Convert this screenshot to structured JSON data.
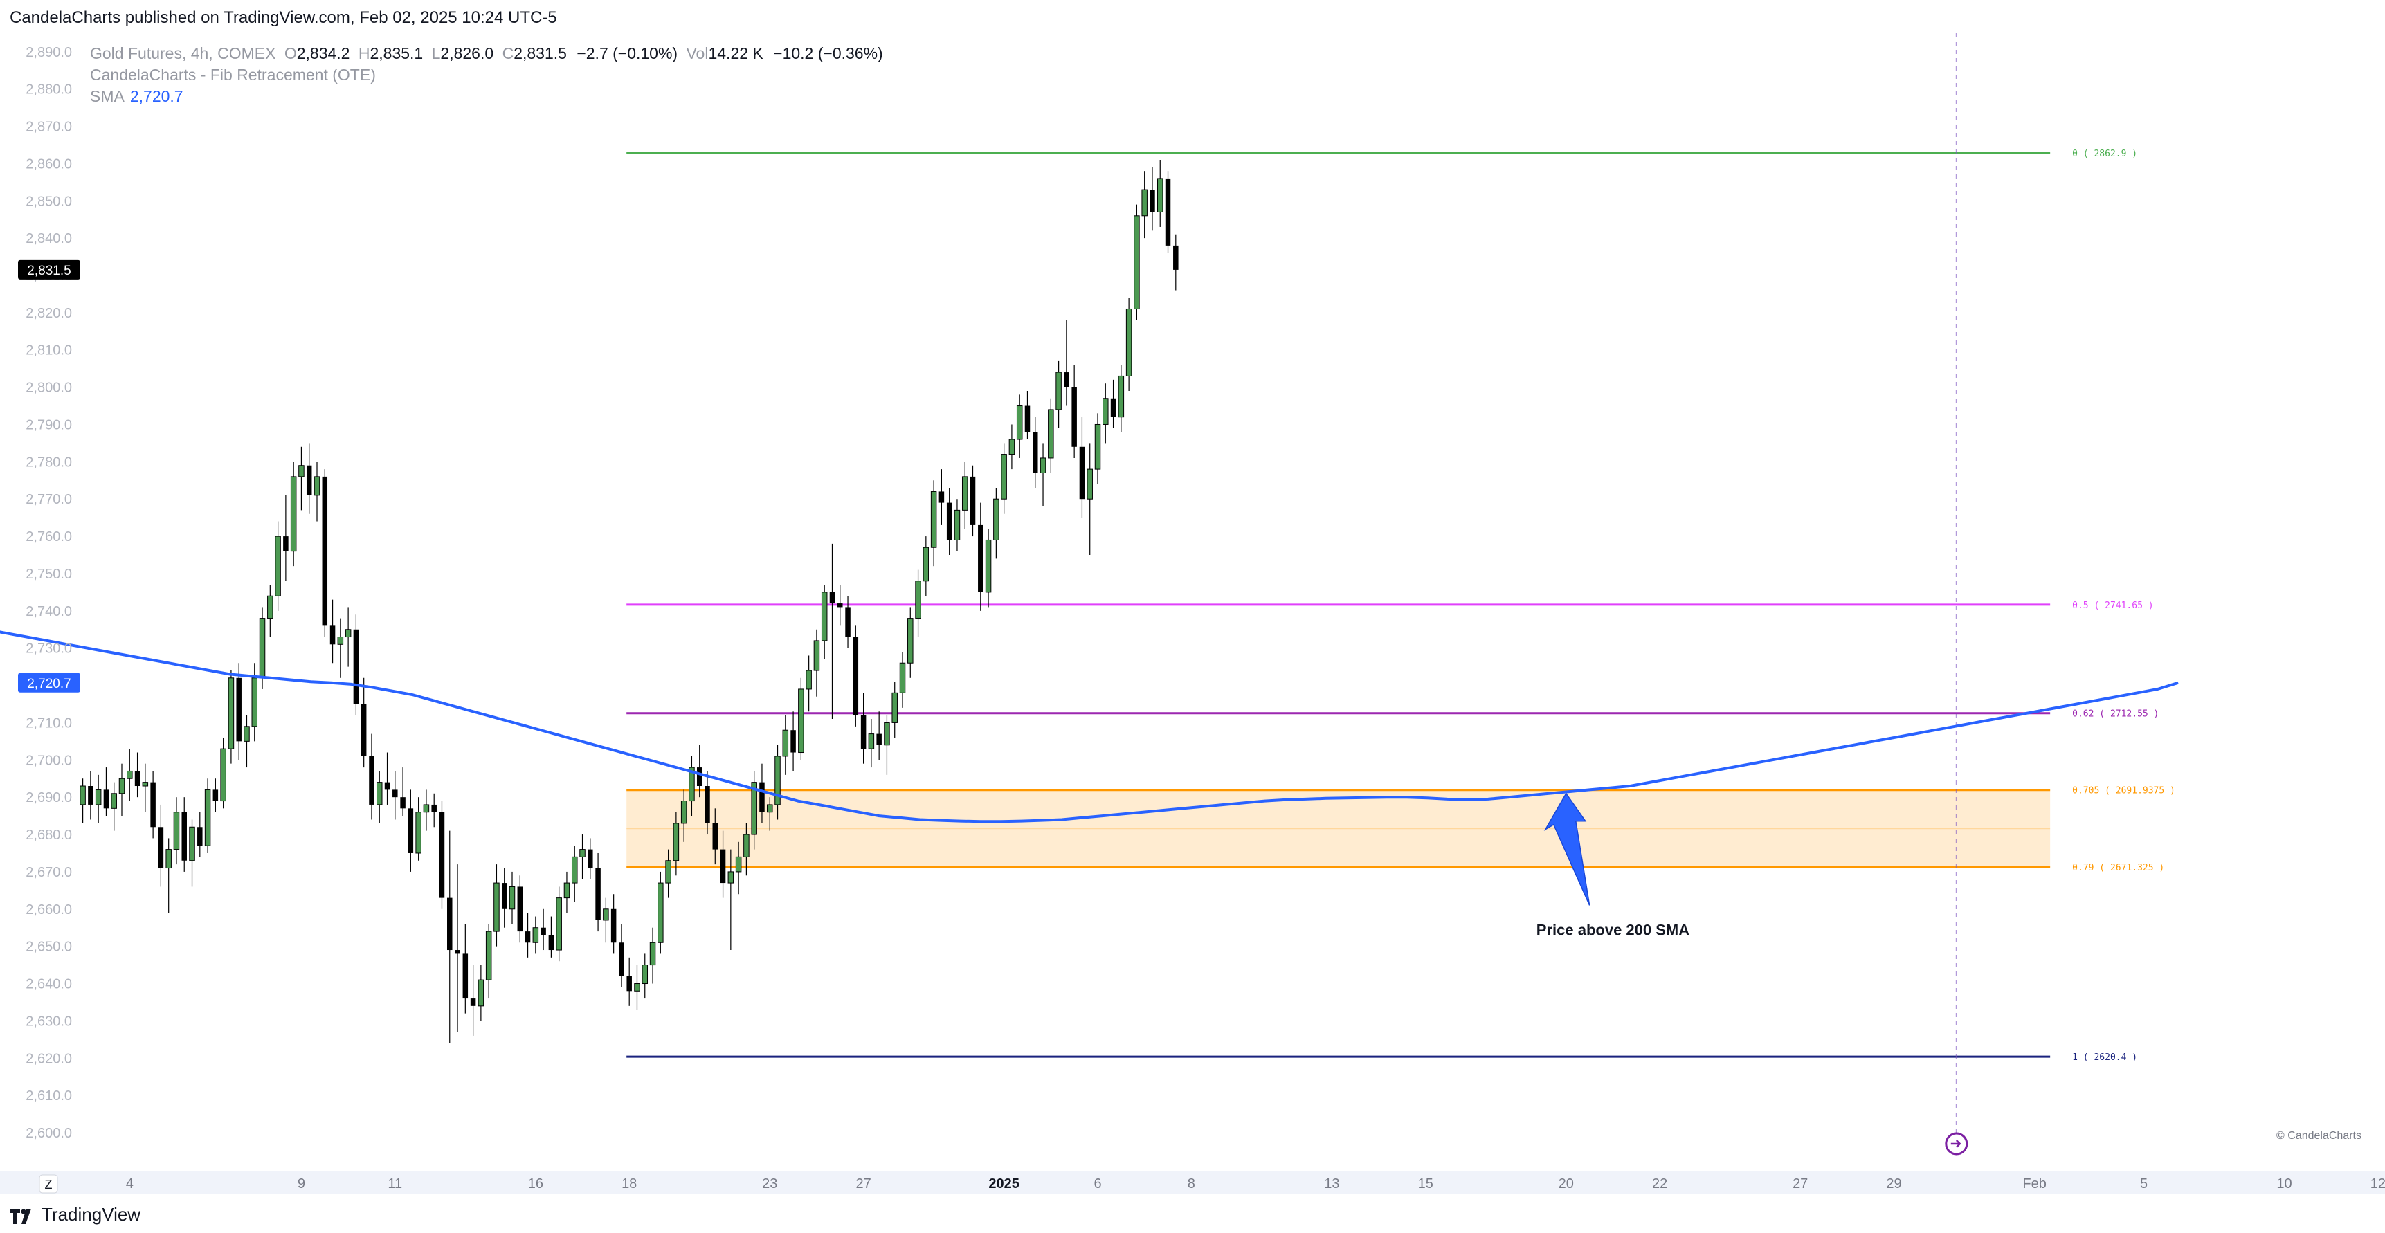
{
  "header": {
    "published": "CandelaCharts published on TradingView.com, Feb 02, 2025 10:24 UTC-5"
  },
  "legend": {
    "symbol": "Gold Futures, 4h, COMEX",
    "ohlc": [
      {
        "k": "O",
        "v": "2,834.2"
      },
      {
        "k": "H",
        "v": "2,835.1"
      },
      {
        "k": "L",
        "v": "2,826.0"
      },
      {
        "k": "C",
        "v": "2,831.5"
      }
    ],
    "change": "−2.7 (−0.10%)",
    "vol_label": "Vol",
    "vol_value": "14.22 K",
    "vol_change": "−10.2 (−0.36%)",
    "indicator_fib": "CandelaCharts - Fib Retracement (OTE)",
    "indicator_sma": "SMA",
    "sma_value": "2,720.7"
  },
  "footer": {
    "logo_text": "TradingView",
    "copyright": "© CandelaCharts",
    "axis_mode": "Z"
  },
  "colors": {
    "up": "#4c9a52",
    "down": "#000000",
    "sma": "#2962ff",
    "fib_0": "#4caf50",
    "fib_05": "#e040fb",
    "fib_062": "#9c27b0",
    "fib_ote": "#ff9800",
    "fib_1": "#1a237e",
    "annotation_arrow": "#2962ff"
  },
  "chart_data": {
    "type": "candlestick",
    "title": "Gold Futures, 4h, COMEX",
    "ylim": [
      2596,
      2894
    ],
    "y_ticks": [
      "2,600.0",
      "2,610.0",
      "2,620.0",
      "2,630.0",
      "2,640.0",
      "2,650.0",
      "2,660.0",
      "2,670.0",
      "2,680.0",
      "2,690.0",
      "2,700.0",
      "2,710.0",
      "2,720.0",
      "2,730.0",
      "2,740.0",
      "2,750.0",
      "2,760.0",
      "2,770.0",
      "2,780.0",
      "2,790.0",
      "2,800.0",
      "2,810.0",
      "2,820.0",
      "2,830.0",
      "2,840.0",
      "2,850.0",
      "2,860.0",
      "2,870.0",
      "2,880.0",
      "2,890.0"
    ],
    "x_ticks": [
      {
        "label": "4",
        "bar": 6
      },
      {
        "label": "9",
        "bar": 28
      },
      {
        "label": "11",
        "bar": 40
      },
      {
        "label": "16",
        "bar": 58
      },
      {
        "label": "18",
        "bar": 70
      },
      {
        "label": "23",
        "bar": 88
      },
      {
        "label": "27",
        "bar": 100
      },
      {
        "label": "2025",
        "bar": 118
      },
      {
        "label": "6",
        "bar": 130
      },
      {
        "label": "8",
        "bar": 142
      },
      {
        "label": "13",
        "bar": 160
      },
      {
        "label": "15",
        "bar": 172
      },
      {
        "label": "20",
        "bar": 190
      },
      {
        "label": "22",
        "bar": 202
      },
      {
        "label": "27",
        "bar": 220
      },
      {
        "label": "29",
        "bar": 232
      },
      {
        "label": "Feb",
        "bar": 250
      },
      {
        "label": "5",
        "bar": 264
      },
      {
        "label": "10",
        "bar": 282
      },
      {
        "label": "12",
        "bar": 294
      }
    ],
    "price_labels": [
      {
        "name": "last-price",
        "value": 2831.5,
        "text": "2,831.5"
      },
      {
        "name": "sma-price",
        "value": 2720.7,
        "text": "2,720.7"
      }
    ],
    "candles_bar_offset": 0,
    "candles": [
      [
        2688,
        2695,
        2683,
        2693
      ],
      [
        2693,
        2697,
        2684,
        2688
      ],
      [
        2688,
        2696,
        2683,
        2692
      ],
      [
        2692,
        2698,
        2685,
        2687
      ],
      [
        2687,
        2694,
        2681,
        2691
      ],
      [
        2691,
        2699,
        2685,
        2695
      ],
      [
        2695,
        2703,
        2689,
        2697
      ],
      [
        2697,
        2702,
        2690,
        2693
      ],
      [
        2693,
        2699,
        2686,
        2694
      ],
      [
        2694,
        2697,
        2679,
        2682
      ],
      [
        2682,
        2688,
        2666,
        2671
      ],
      [
        2671,
        2679,
        2659,
        2676
      ],
      [
        2676,
        2690,
        2672,
        2686
      ],
      [
        2686,
        2690,
        2670,
        2673
      ],
      [
        2673,
        2684,
        2666,
        2682
      ],
      [
        2682,
        2686,
        2674,
        2677
      ],
      [
        2677,
        2695,
        2675,
        2692
      ],
      [
        2692,
        2695,
        2686,
        2689
      ],
      [
        2689,
        2706,
        2687,
        2703
      ],
      [
        2703,
        2724,
        2699,
        2722
      ],
      [
        2722,
        2726,
        2700,
        2705
      ],
      [
        2705,
        2712,
        2698,
        2709
      ],
      [
        2709,
        2726,
        2705,
        2722
      ],
      [
        2722,
        2741,
        2719,
        2738
      ],
      [
        2738,
        2747,
        2733,
        2744
      ],
      [
        2744,
        2764,
        2740,
        2760
      ],
      [
        2760,
        2771,
        2748,
        2756
      ],
      [
        2756,
        2780,
        2752,
        2776
      ],
      [
        2776,
        2784,
        2767,
        2779
      ],
      [
        2779,
        2785,
        2766,
        2771
      ],
      [
        2771,
        2780,
        2764,
        2776
      ],
      [
        2776,
        2778,
        2733,
        2736
      ],
      [
        2736,
        2743,
        2726,
        2731
      ],
      [
        2731,
        2738,
        2722,
        2733
      ],
      [
        2733,
        2741,
        2725,
        2735
      ],
      [
        2735,
        2739,
        2712,
        2715
      ],
      [
        2715,
        2722,
        2698,
        2701
      ],
      [
        2701,
        2707,
        2684,
        2688
      ],
      [
        2688,
        2697,
        2683,
        2694
      ],
      [
        2694,
        2702,
        2688,
        2692
      ],
      [
        2692,
        2697,
        2684,
        2690
      ],
      [
        2690,
        2698,
        2685,
        2687
      ],
      [
        2687,
        2692,
        2670,
        2675
      ],
      [
        2675,
        2690,
        2673,
        2686
      ],
      [
        2686,
        2692,
        2681,
        2688
      ],
      [
        2688,
        2691,
        2682,
        2686
      ],
      [
        2686,
        2689,
        2660,
        2663
      ],
      [
        2663,
        2681,
        2624,
        2649
      ],
      [
        2649,
        2672,
        2627,
        2648
      ],
      [
        2648,
        2656,
        2632,
        2636
      ],
      [
        2636,
        2645,
        2626,
        2634
      ],
      [
        2634,
        2645,
        2630,
        2641
      ],
      [
        2641,
        2656,
        2636,
        2654
      ],
      [
        2654,
        2672,
        2650,
        2667
      ],
      [
        2667,
        2671,
        2655,
        2660
      ],
      [
        2660,
        2670,
        2656,
        2666
      ],
      [
        2666,
        2669,
        2651,
        2654
      ],
      [
        2654,
        2659,
        2647,
        2651
      ],
      [
        2651,
        2658,
        2648,
        2655
      ],
      [
        2655,
        2660,
        2649,
        2653
      ],
      [
        2653,
        2658,
        2647,
        2649
      ],
      [
        2649,
        2666,
        2646,
        2663
      ],
      [
        2663,
        2670,
        2659,
        2667
      ],
      [
        2667,
        2677,
        2662,
        2674
      ],
      [
        2674,
        2680,
        2668,
        2676
      ],
      [
        2676,
        2679,
        2668,
        2671
      ],
      [
        2671,
        2675,
        2654,
        2657
      ],
      [
        2657,
        2663,
        2651,
        2660
      ],
      [
        2660,
        2664,
        2648,
        2651
      ],
      [
        2651,
        2656,
        2639,
        2642
      ],
      [
        2642,
        2647,
        2634,
        2638
      ],
      [
        2638,
        2645,
        2633,
        2640
      ],
      [
        2640,
        2648,
        2636,
        2645
      ],
      [
        2645,
        2655,
        2640,
        2651
      ],
      [
        2651,
        2670,
        2648,
        2667
      ],
      [
        2667,
        2676,
        2663,
        2673
      ],
      [
        2673,
        2686,
        2669,
        2683
      ],
      [
        2683,
        2692,
        2678,
        2689
      ],
      [
        2689,
        2701,
        2685,
        2698
      ],
      [
        2698,
        2704,
        2690,
        2693
      ],
      [
        2693,
        2697,
        2680,
        2683
      ],
      [
        2683,
        2687,
        2672,
        2676
      ],
      [
        2676,
        2681,
        2663,
        2667
      ],
      [
        2667,
        2676,
        2649,
        2670
      ],
      [
        2670,
        2678,
        2664,
        2674
      ],
      [
        2674,
        2683,
        2669,
        2680
      ],
      [
        2680,
        2697,
        2676,
        2694
      ],
      [
        2694,
        2699,
        2683,
        2686
      ],
      [
        2686,
        2690,
        2681,
        2688
      ],
      [
        2688,
        2704,
        2684,
        2701
      ],
      [
        2701,
        2712,
        2696,
        2708
      ],
      [
        2708,
        2713,
        2697,
        2702
      ],
      [
        2702,
        2722,
        2700,
        2719
      ],
      [
        2719,
        2728,
        2713,
        2724
      ],
      [
        2724,
        2735,
        2717,
        2732
      ],
      [
        2732,
        2747,
        2727,
        2745
      ],
      [
        2745,
        2758,
        2711,
        2742
      ],
      [
        2742,
        2747,
        2736,
        2741
      ],
      [
        2741,
        2744,
        2730,
        2733
      ],
      [
        2733,
        2736,
        2709,
        2712
      ],
      [
        2712,
        2718,
        2699,
        2703
      ],
      [
        2703,
        2711,
        2698,
        2707
      ],
      [
        2707,
        2713,
        2700,
        2704
      ],
      [
        2704,
        2712,
        2696,
        2710
      ],
      [
        2710,
        2721,
        2706,
        2718
      ],
      [
        2718,
        2729,
        2714,
        2726
      ],
      [
        2726,
        2741,
        2722,
        2738
      ],
      [
        2738,
        2751,
        2733,
        2748
      ],
      [
        2748,
        2760,
        2744,
        2757
      ],
      [
        2757,
        2775,
        2752,
        2772
      ],
      [
        2772,
        2778,
        2763,
        2769
      ],
      [
        2769,
        2773,
        2755,
        2759
      ],
      [
        2759,
        2770,
        2756,
        2767
      ],
      [
        2767,
        2780,
        2762,
        2776
      ],
      [
        2776,
        2779,
        2760,
        2763
      ],
      [
        2763,
        2769,
        2740,
        2745
      ],
      [
        2745,
        2762,
        2741,
        2759
      ],
      [
        2759,
        2773,
        2754,
        2770
      ],
      [
        2770,
        2785,
        2766,
        2782
      ],
      [
        2782,
        2790,
        2778,
        2786
      ],
      [
        2786,
        2798,
        2781,
        2795
      ],
      [
        2795,
        2799,
        2786,
        2788
      ],
      [
        2788,
        2792,
        2773,
        2777
      ],
      [
        2777,
        2785,
        2768,
        2781
      ],
      [
        2781,
        2797,
        2777,
        2794
      ],
      [
        2794,
        2807,
        2789,
        2804
      ],
      [
        2804,
        2818,
        2795,
        2800
      ],
      [
        2800,
        2806,
        2781,
        2784
      ],
      [
        2784,
        2792,
        2765,
        2770
      ],
      [
        2770,
        2785,
        2755,
        2778
      ],
      [
        2778,
        2793,
        2774,
        2790
      ],
      [
        2790,
        2801,
        2785,
        2797
      ],
      [
        2797,
        2802,
        2789,
        2792
      ],
      [
        2792,
        2806,
        2788,
        2803
      ],
      [
        2803,
        2824,
        2799,
        2821
      ],
      [
        2821,
        2849,
        2818,
        2846
      ],
      [
        2846,
        2858,
        2840,
        2853
      ],
      [
        2853,
        2859,
        2842,
        2847
      ],
      [
        2847,
        2861,
        2843,
        2856
      ],
      [
        2856,
        2858,
        2836,
        2838
      ],
      [
        2838,
        2841,
        2826,
        2831.5
      ]
    ],
    "sma_200": [
      2736,
      2735,
      2734,
      2733,
      2732,
      2731,
      2730,
      2729,
      2728,
      2727,
      2726,
      2725,
      2724,
      2723,
      2722.5,
      2722,
      2721.5,
      2721,
      2720.7,
      2720.3,
      2719.5,
      2718.5,
      2717.5,
      2716,
      2714.5,
      2713,
      2711.5,
      2710,
      2708.5,
      2707,
      2705.5,
      2704,
      2702.5,
      2701,
      2699.5,
      2698,
      2696.5,
      2695,
      2693.5,
      2692,
      2690.5,
      2689,
      2688,
      2687,
      2686,
      2685,
      2684.5,
      2684,
      2683.8,
      2683.6,
      2683.5,
      2683.5,
      2683.6,
      2683.8,
      2684,
      2684.5,
      2685,
      2685.5,
      2686,
      2686.5,
      2687,
      2687.5,
      2688,
      2688.5,
      2689,
      2689.3,
      2689.5,
      2689.7,
      2689.8,
      2689.9,
      2690,
      2690,
      2689.8,
      2689.5,
      2689.3,
      2689.5,
      2690,
      2690.5,
      2691,
      2691.5,
      2692,
      2692.5,
      2693,
      2694,
      2695,
      2696,
      2697,
      2698,
      2699,
      2700,
      2701,
      2702,
      2703,
      2704,
      2705,
      2706,
      2707,
      2708,
      2709,
      2710,
      2711,
      2712,
      2713,
      2714,
      2715,
      2716,
      2717,
      2718,
      2719,
      2720.7
    ],
    "sma_start_bar": -15,
    "sma_step_bars": 2.6,
    "fib": {
      "start_bar": 70,
      "end_bar": 252,
      "levels": [
        {
          "name": "fib-level-0",
          "label": "0 ( 2862.9 )",
          "value": 2862.9,
          "color": "#4caf50"
        },
        {
          "name": "fib-level-0.5",
          "label": "0.5 ( 2741.65 )",
          "value": 2741.65,
          "color": "#e040fb"
        },
        {
          "name": "fib-level-0.62",
          "label": "0.62 ( 2712.55 )",
          "value": 2712.55,
          "color": "#9c27b0"
        },
        {
          "name": "fib-level-0.705",
          "label": "0.705 ( 2691.9375 )",
          "value": 2691.9375,
          "color": "#ff9800"
        },
        {
          "name": "fib-level-0.79",
          "label": "0.79 ( 2671.325 )",
          "value": 2671.325,
          "color": "#ff9800"
        },
        {
          "name": "fib-level-1",
          "label": "1 ( 2620.4 )",
          "value": 2620.4,
          "color": "#1a237e"
        }
      ],
      "ote_zone": [
        2671.325,
        2691.9375
      ]
    },
    "annotation": {
      "text": "Price above 200 SMA",
      "arrow_from": {
        "bar": 193,
        "value": 2661
      },
      "arrow_to": {
        "bar": 190,
        "value": 2691
      },
      "text_anchor": {
        "bar": 196,
        "value": 2653
      }
    },
    "session_break_bar": 240
  }
}
